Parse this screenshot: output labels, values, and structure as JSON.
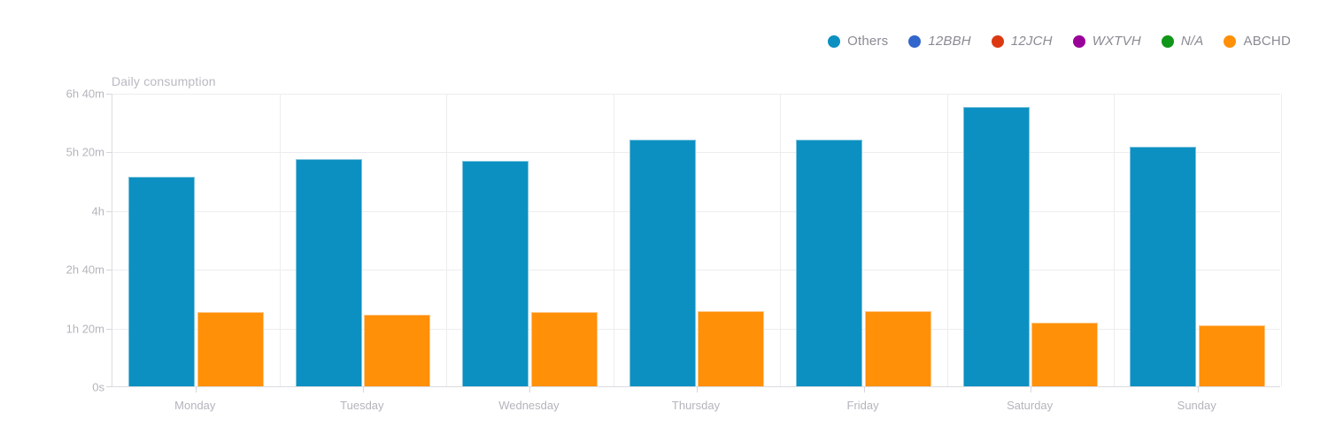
{
  "chart_data": {
    "type": "bar",
    "title": "Daily consumption",
    "categories": [
      "Monday",
      "Tuesday",
      "Wednesday",
      "Thursday",
      "Friday",
      "Saturday",
      "Sunday"
    ],
    "series": [
      {
        "name": "Others",
        "color": "#0c90c1",
        "edge_color": "#7cc3dd",
        "values_minutes": [
          286,
          310,
          307,
          336,
          336,
          381,
          326
        ]
      },
      {
        "name": "ABCHD",
        "color": "#ff9008",
        "edge_color": "#ffc685",
        "values_minutes": [
          101,
          98,
          101,
          102,
          102,
          87,
          83
        ]
      }
    ],
    "yaxis": {
      "ticks_bottom_to_top": [
        "0s",
        "1h 20m",
        "2h 40m",
        "4h",
        "5h 20m",
        "6h 40m"
      ],
      "min_minutes": 0,
      "max_minutes": 400,
      "tick_step_minutes": 80
    },
    "grid": true,
    "legend_position": "top-right",
    "legend": [
      {
        "label": "Others",
        "color": "#0c90c1",
        "italic": false
      },
      {
        "label": "12BBH",
        "color": "#3366cc",
        "italic": true
      },
      {
        "label": "12JCH",
        "color": "#dc3912",
        "italic": true
      },
      {
        "label": "WXTVH",
        "color": "#990099",
        "italic": true
      },
      {
        "label": "N/A",
        "color": "#109618",
        "italic": true
      },
      {
        "label": "ABCHD",
        "color": "#ff9008",
        "italic": false
      }
    ],
    "colors": {
      "background": "#ffffff",
      "gridline": "#ededf0",
      "axis_line": "#dcdce1",
      "axis_tick": "#d7d7dc",
      "axis_label_text": "#b4b4bc",
      "title_text": "#b9b9c1",
      "legend_text": "#8a8a94"
    }
  }
}
